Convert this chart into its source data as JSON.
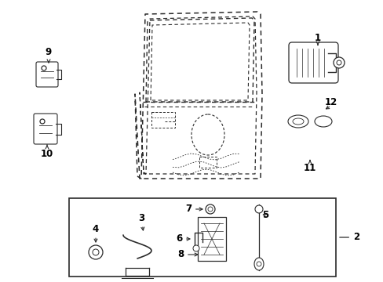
{
  "bg_color": "#ffffff",
  "line_color": "#2a2a2a",
  "fig_width": 4.89,
  "fig_height": 3.6,
  "dpi": 100,
  "label_fontsize": 8.5
}
